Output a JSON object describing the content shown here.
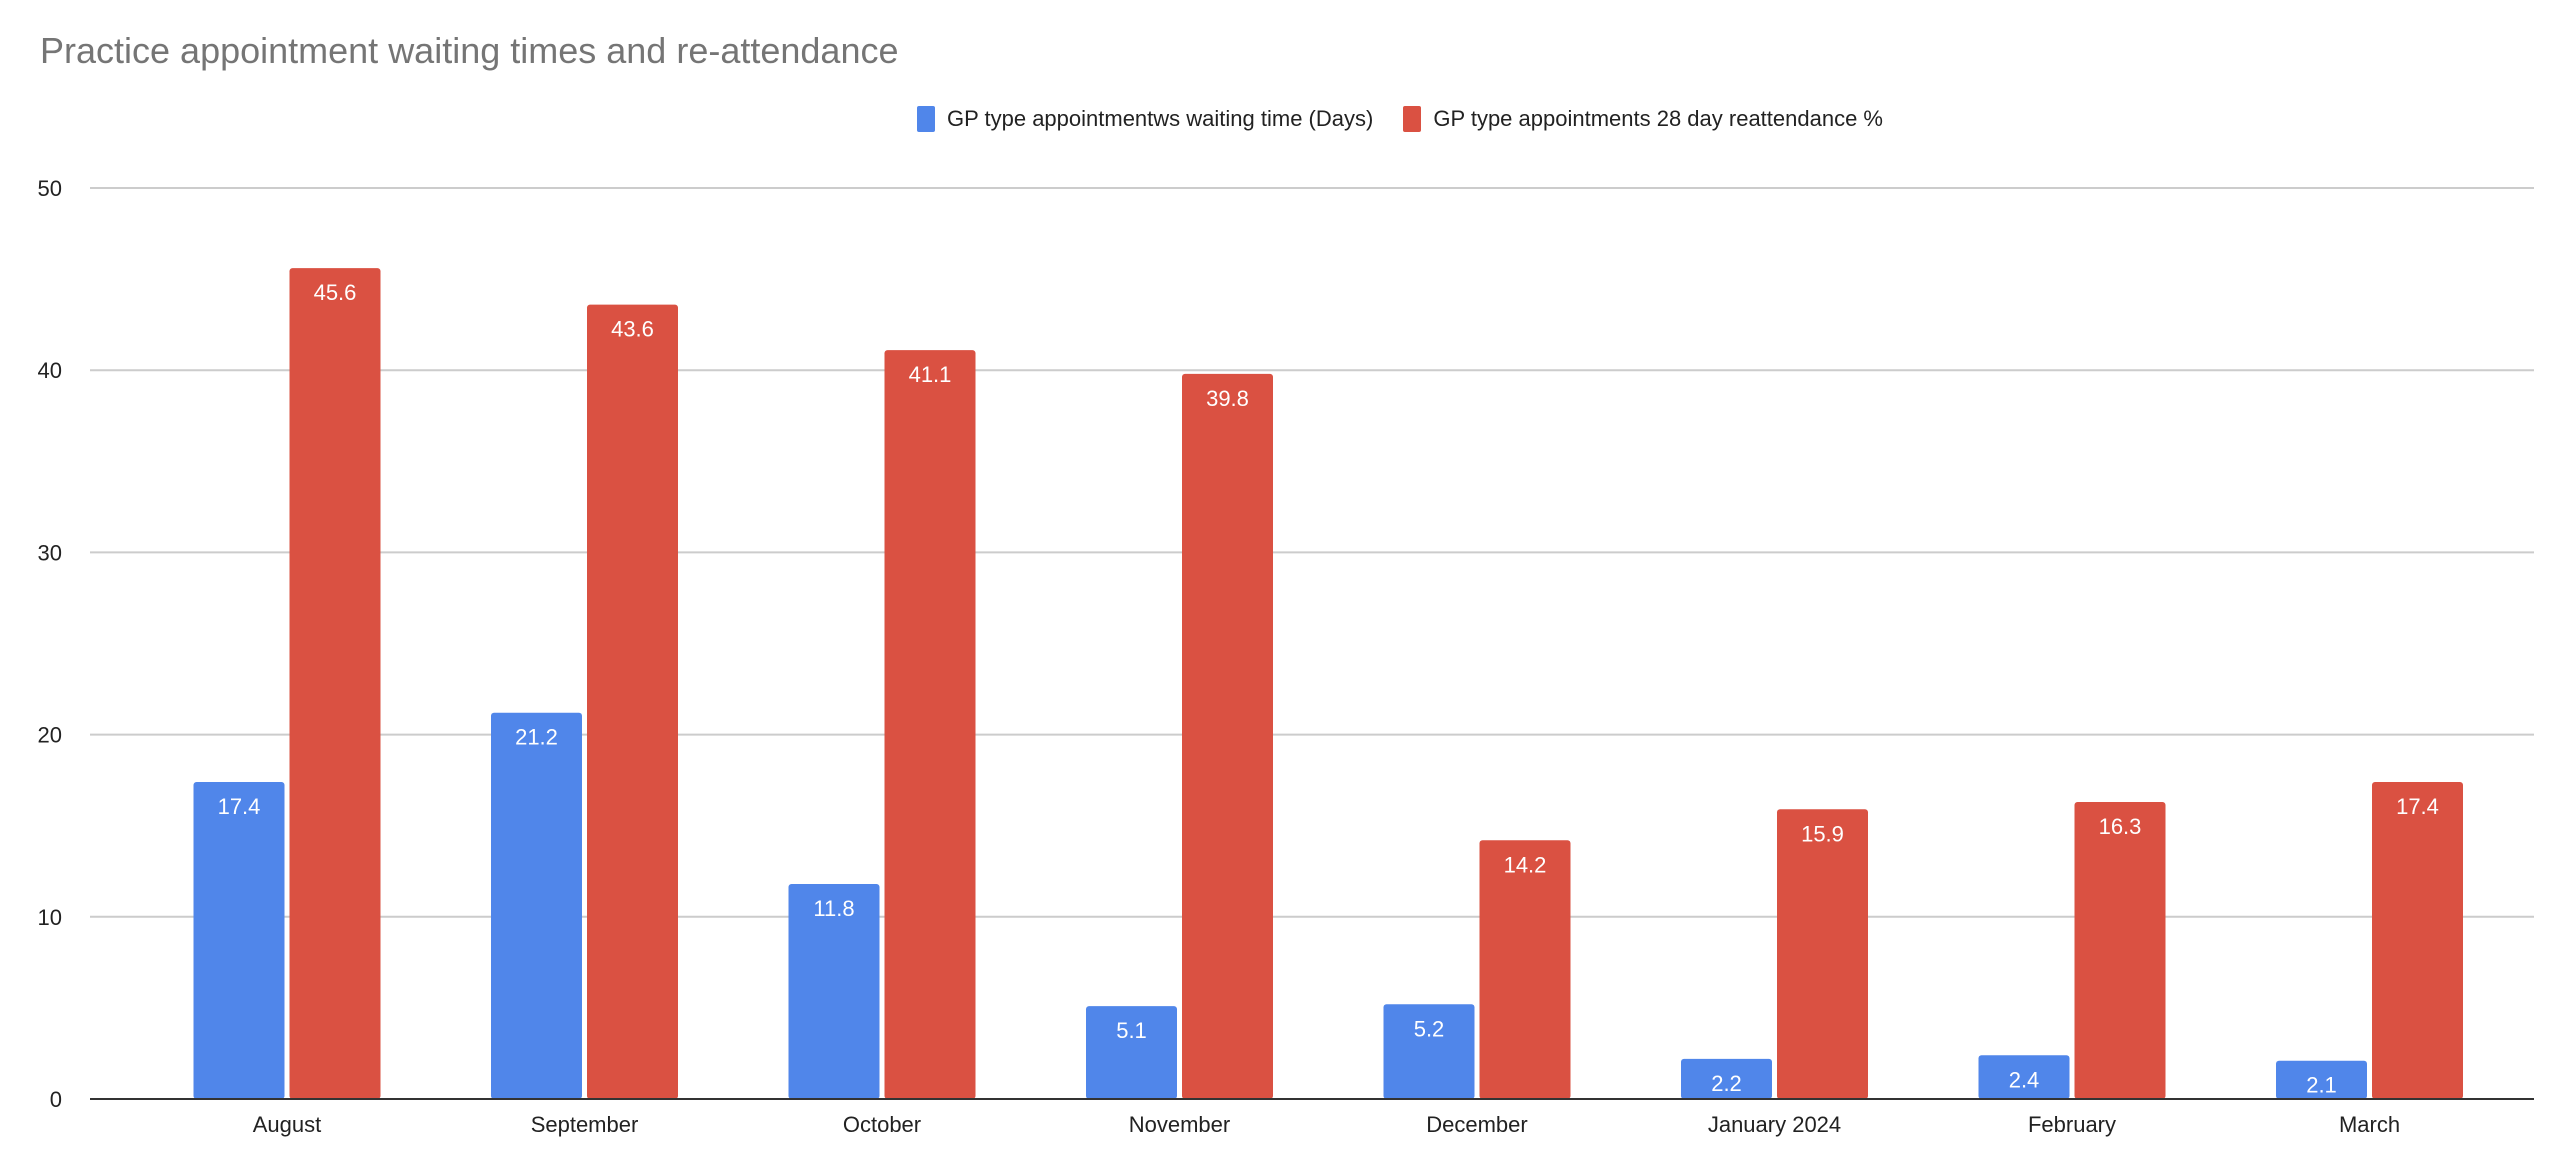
{
  "chart_data": {
    "type": "bar",
    "title": "Practice appointment waiting times and re-attendance",
    "categories": [
      "August",
      "September",
      "October",
      "November",
      "December",
      "January 2024",
      "February",
      "March"
    ],
    "series": [
      {
        "name": "GP type appointmentws waiting time (Days)",
        "color": "#5086ea",
        "values": [
          17.4,
          21.2,
          11.8,
          5.1,
          5.2,
          2.2,
          2.4,
          2.1
        ]
      },
      {
        "name": "GP type appointments 28 day reattendance %",
        "color": "#da5142",
        "values": [
          45.6,
          43.6,
          41.1,
          39.8,
          14.2,
          15.9,
          16.3,
          17.4
        ]
      }
    ],
    "xlabel": "",
    "ylabel": "",
    "ylim": [
      0,
      50
    ],
    "yticks": [
      "0",
      "10",
      "20",
      "30",
      "40",
      "50"
    ],
    "grid": true,
    "legend_position": "top"
  }
}
